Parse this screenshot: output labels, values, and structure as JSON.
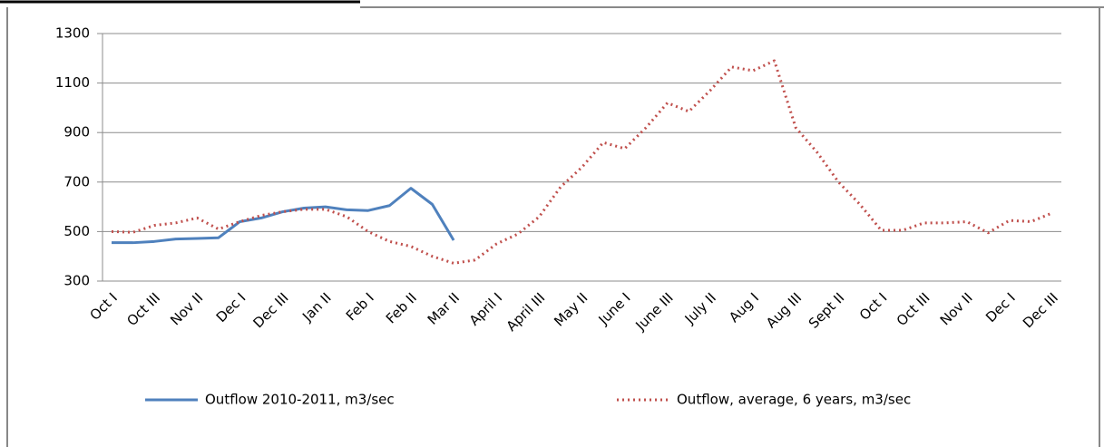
{
  "chart_data": {
    "type": "line",
    "categories": [
      "Oct I",
      null,
      "Oct III",
      null,
      "Nov II",
      null,
      "Dec I",
      null,
      "Dec III",
      null,
      "Jan II",
      null,
      "Feb I",
      null,
      "Feb II",
      null,
      "Mar II",
      null,
      "April I",
      null,
      "April III",
      null,
      "May II",
      null,
      "June I",
      null,
      "June III",
      null,
      "July II",
      null,
      "Aug I",
      null,
      "Aug III",
      null,
      "Sept II",
      null,
      "Oct I",
      null,
      "Oct III",
      null,
      "Nov II",
      null,
      "Dec I",
      null,
      "Dec III"
    ],
    "series": [
      {
        "name": "Outflow 2010-2011, m3/sec",
        "color": "#4f81bd",
        "style": "solid",
        "values": [
          455,
          455,
          460,
          470,
          472,
          475,
          540,
          555,
          580,
          595,
          600,
          588,
          585,
          605,
          675,
          610,
          465,
          null,
          null,
          null,
          null,
          null,
          null,
          null,
          null,
          null,
          null,
          null,
          null,
          null,
          null,
          null,
          null,
          null,
          null,
          null,
          null,
          null,
          null,
          null,
          null,
          null,
          null,
          null,
          null
        ]
      },
      {
        "name": "Outflow, average, 6 years, m3/sec",
        "color": "#c0504d",
        "style": "dotted",
        "values": [
          500,
          497,
          525,
          535,
          555,
          510,
          540,
          565,
          580,
          590,
          590,
          560,
          500,
          460,
          440,
          400,
          372,
          385,
          450,
          490,
          560,
          680,
          760,
          860,
          835,
          920,
          1020,
          985,
          1070,
          1165,
          1150,
          1190,
          920,
          820,
          700,
          610,
          505,
          505,
          535,
          535,
          540,
          495,
          545,
          540,
          575
        ]
      }
    ],
    "ylim": [
      300,
      1300
    ],
    "yticks": [
      300,
      500,
      700,
      900,
      1100,
      1300
    ],
    "grid": true
  }
}
